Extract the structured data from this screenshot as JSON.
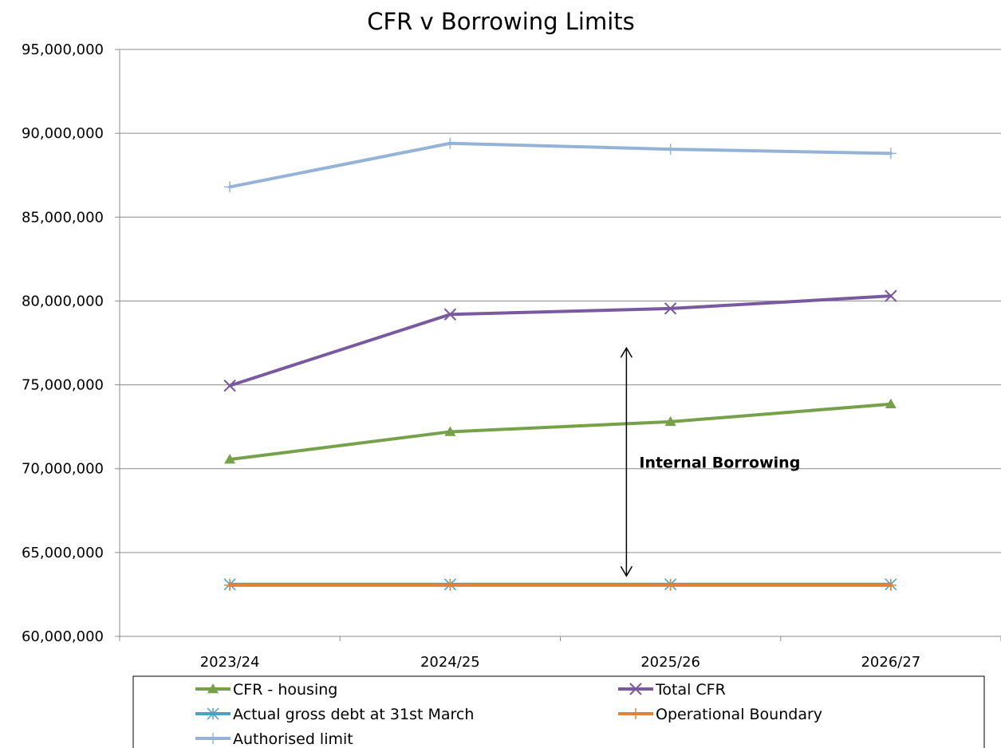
{
  "chart_data": {
    "type": "line",
    "title": "CFR v Borrowing Limits",
    "xlabel": "",
    "ylabel": "",
    "categories": [
      "2023/24",
      "2024/25",
      "2025/26",
      "2026/27"
    ],
    "ylim": [
      60000000,
      95000000
    ],
    "yticks": [
      60000000,
      65000000,
      70000000,
      75000000,
      80000000,
      85000000,
      90000000,
      95000000
    ],
    "ytick_labels": [
      "60,000,000",
      "65,000,000",
      "70,000,000",
      "75,000,000",
      "80,000,000",
      "85,000,000",
      "90,000,000",
      "95,000,000"
    ],
    "grid": true,
    "legend_position": "bottom",
    "series": [
      {
        "name": "CFR - housing",
        "values": [
          70550000,
          72200000,
          72800000,
          73850000
        ],
        "color": "#77a04b",
        "marker": "triangle"
      },
      {
        "name": "Total CFR",
        "values": [
          74950000,
          79200000,
          79550000,
          80300000
        ],
        "color": "#7a5a9e",
        "marker": "x"
      },
      {
        "name": "Actual gross debt at 31st March",
        "values": [
          63100000,
          63100000,
          63100000,
          63100000
        ],
        "color": "#4aa3bd",
        "marker": "star"
      },
      {
        "name": "Operational Boundary",
        "values": [
          63050000,
          63050000,
          63050000,
          63050000
        ],
        "color": "#e2813a",
        "marker": "plus"
      },
      {
        "name": "Authorised limit",
        "values": [
          86800000,
          89400000,
          89050000,
          88800000
        ],
        "color": "#95b3d7",
        "marker": "plus"
      }
    ],
    "annotation": {
      "text": "Internal Borrowing",
      "arrow_category_pos": 2.3,
      "arrow_from": 63600000,
      "arrow_to": 77200000,
      "label_value": 70000000
    }
  }
}
